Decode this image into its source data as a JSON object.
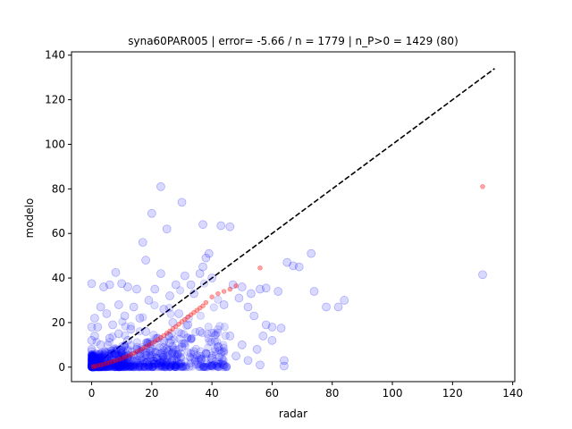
{
  "chart_data": {
    "type": "scatter",
    "title": "syna60PAR005 | error= -5.66 / n = 1779 | n_P>0 = 1429 (80)",
    "xlabel": "radar",
    "ylabel": "modelo",
    "xlim": [
      -6.7,
      140.7
    ],
    "ylim": [
      -6.5,
      141.5
    ],
    "xticks": [
      0,
      20,
      40,
      60,
      80,
      100,
      120,
      140
    ],
    "yticks": [
      0,
      20,
      40,
      60,
      80,
      100,
      120,
      140
    ],
    "grid": false,
    "legend": "none",
    "colors": {
      "scatter_blue": "#0000ff",
      "quantile_red": "#ff0000",
      "reference_line": "#000000"
    },
    "reference_line": {
      "style": "dashed",
      "from": [
        0,
        0
      ],
      "to": [
        134,
        134
      ]
    },
    "series": [
      {
        "marker": "circle-large",
        "color": "#0000ff",
        "points": [
          [
            23,
            81
          ],
          [
            30,
            74
          ],
          [
            20,
            69
          ],
          [
            37,
            64
          ],
          [
            43,
            63.5
          ],
          [
            46,
            63
          ],
          [
            25,
            62
          ],
          [
            17,
            56
          ],
          [
            39,
            51
          ],
          [
            38,
            49
          ],
          [
            73,
            51
          ],
          [
            18,
            48
          ],
          [
            65,
            47
          ],
          [
            67,
            45.5
          ],
          [
            69,
            45
          ],
          [
            37,
            45
          ],
          [
            36,
            42
          ],
          [
            8,
            42.5
          ],
          [
            23,
            42
          ],
          [
            31,
            41
          ],
          [
            130,
            41.5
          ],
          [
            40,
            40
          ],
          [
            33,
            37
          ],
          [
            28,
            37
          ],
          [
            10,
            37.5
          ],
          [
            0,
            37.5
          ],
          [
            4,
            36
          ],
          [
            6,
            37
          ],
          [
            12,
            36
          ],
          [
            15,
            35
          ],
          [
            21,
            35
          ],
          [
            47,
            37
          ],
          [
            50,
            36
          ],
          [
            56,
            35
          ],
          [
            58,
            35.5
          ],
          [
            62,
            34
          ],
          [
            74,
            34
          ],
          [
            53,
            33
          ],
          [
            49,
            31
          ],
          [
            84,
            30
          ],
          [
            82,
            27
          ],
          [
            78,
            27
          ],
          [
            34,
            33
          ],
          [
            26,
            32
          ],
          [
            19,
            30
          ],
          [
            9,
            28
          ],
          [
            3,
            27
          ],
          [
            14,
            27
          ],
          [
            24,
            26
          ],
          [
            29,
            24
          ],
          [
            44,
            28
          ],
          [
            52,
            27
          ],
          [
            54,
            23
          ],
          [
            58,
            19
          ],
          [
            60,
            18
          ],
          [
            63,
            17.5
          ],
          [
            57,
            14
          ],
          [
            60,
            12
          ],
          [
            64,
            3
          ],
          [
            64,
            0.5
          ],
          [
            55,
            8
          ],
          [
            50,
            10
          ],
          [
            46,
            14
          ],
          [
            42,
            9
          ],
          [
            48,
            5
          ],
          [
            52,
            3
          ],
          [
            56,
            1
          ],
          [
            44,
            1
          ],
          [
            40,
            4
          ],
          [
            36,
            16
          ],
          [
            32,
            19
          ],
          [
            27,
            20
          ],
          [
            16,
            22
          ],
          [
            11,
            23
          ],
          [
            5,
            24
          ],
          [
            1,
            22
          ],
          [
            2,
            18
          ],
          [
            7,
            19
          ],
          [
            13,
            17
          ],
          [
            18,
            16
          ],
          [
            22,
            13
          ],
          [
            26,
            11
          ],
          [
            30,
            9
          ],
          [
            34,
            7
          ],
          [
            38,
            6
          ],
          [
            24,
            3
          ],
          [
            20,
            5
          ],
          [
            17,
            8
          ],
          [
            12,
            12
          ],
          [
            9,
            15
          ],
          [
            6,
            13
          ],
          [
            3,
            10
          ],
          [
            1,
            14
          ],
          [
            0,
            18
          ],
          [
            0,
            12
          ],
          [
            0,
            8
          ]
        ]
      },
      {
        "marker": "circle-small",
        "color": "#ff0000",
        "points": [
          [
            0.5,
            0.2
          ],
          [
            1,
            0.4
          ],
          [
            2,
            0.7
          ],
          [
            3,
            1.0
          ],
          [
            4,
            1.3
          ],
          [
            5,
            1.7
          ],
          [
            6,
            2.1
          ],
          [
            7,
            2.5
          ],
          [
            8,
            2.9
          ],
          [
            9,
            3.4
          ],
          [
            10,
            3.9
          ],
          [
            11,
            4.4
          ],
          [
            12,
            5.0
          ],
          [
            13,
            5.6
          ],
          [
            14,
            6.2
          ],
          [
            15,
            6.9
          ],
          [
            16,
            7.6
          ],
          [
            17,
            8.3
          ],
          [
            18,
            9.1
          ],
          [
            19,
            9.9
          ],
          [
            20,
            10.7
          ],
          [
            21,
            11.5
          ],
          [
            22,
            12.4
          ],
          [
            23,
            13.3
          ],
          [
            24,
            14.2
          ],
          [
            25,
            15.2
          ],
          [
            26,
            16.2
          ],
          [
            27,
            17.2
          ],
          [
            28,
            18.2
          ],
          [
            29,
            19.3
          ],
          [
            30,
            20.4
          ],
          [
            31,
            21.4
          ],
          [
            32,
            22.5
          ],
          [
            33,
            23.5
          ],
          [
            34,
            24.5
          ],
          [
            35,
            25.5
          ],
          [
            36,
            26.5
          ],
          [
            37,
            27.5
          ],
          [
            38,
            29
          ],
          [
            40,
            31.5
          ],
          [
            42,
            33
          ],
          [
            44,
            34
          ],
          [
            46,
            35
          ],
          [
            48,
            36.5
          ],
          [
            56,
            44.5
          ],
          [
            130,
            81
          ]
        ]
      }
    ]
  }
}
